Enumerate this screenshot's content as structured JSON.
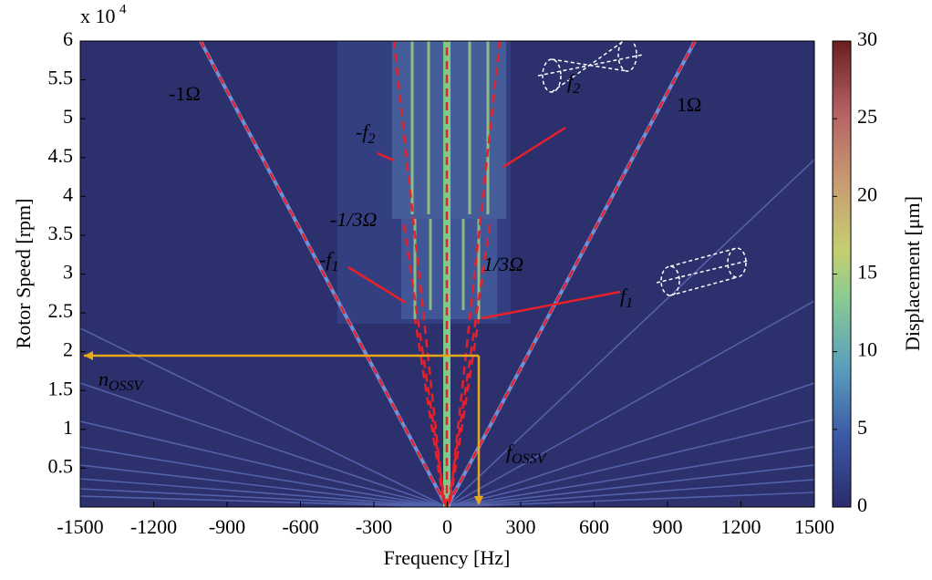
{
  "chart_data": {
    "type": "heatmap",
    "x_label": "Frequency [Hz]",
    "y_label": "Rotor Speed [rpm]",
    "y_multiplier": "x 10",
    "y_multiplier_exp": "4",
    "xlim": [
      -1500,
      1500
    ],
    "xticks": [
      -1500,
      -1200,
      -900,
      -600,
      -300,
      0,
      300,
      600,
      900,
      1200,
      1500
    ],
    "ylim": [
      0,
      6
    ],
    "yticks": [
      0.5,
      1,
      1.5,
      2,
      2.5,
      3,
      3.5,
      4,
      4.5,
      5,
      5.5,
      6
    ],
    "colorbar": {
      "label": "Displacement [μm]",
      "lim": [
        0,
        30
      ],
      "ticks": [
        0,
        5,
        10,
        15,
        20,
        25,
        30
      ]
    },
    "annotations": [
      {
        "text": "-1Ω",
        "color": "#e8202a"
      },
      {
        "text": "1Ω",
        "color": "#e8202a"
      },
      {
        "text": "-f",
        "sub": "2",
        "color": "#e8202a"
      },
      {
        "text": "f",
        "sub": "2",
        "color": "#e8202a"
      },
      {
        "text": "-1/3Ω",
        "color": "#e8202a"
      },
      {
        "text": "1/3Ω",
        "color": "#e8202a"
      },
      {
        "text": "-f",
        "sub": "1",
        "color": "#e8202a"
      },
      {
        "text": "f",
        "sub": "1",
        "color": "#e8202a"
      },
      {
        "text": "n",
        "sub": "OSSV",
        "color": "#e8a818"
      },
      {
        "text": "f",
        "sub": "OSSV",
        "color": "#e8a818"
      }
    ]
  }
}
